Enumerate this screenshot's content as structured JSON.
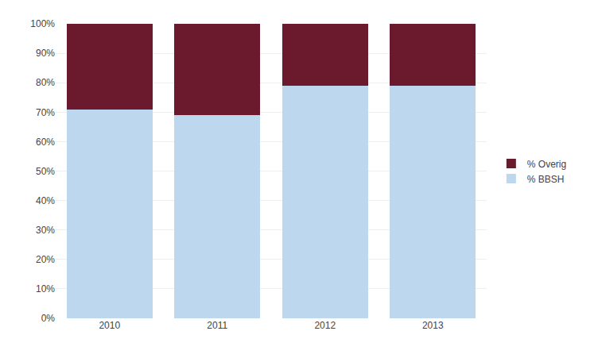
{
  "chart_data": {
    "type": "bar",
    "stacked": true,
    "categories": [
      "2010",
      "2011",
      "2012",
      "2013"
    ],
    "series": [
      {
        "name": "% BBSH",
        "color": "#bdd7ee",
        "values": [
          0.71,
          0.69,
          0.79,
          0.79
        ]
      },
      {
        "name": "% Overig",
        "color": "#6b1a2e",
        "values": [
          0.29,
          0.31,
          0.21,
          0.21
        ]
      }
    ],
    "ylim": [
      0,
      1.0
    ],
    "yticks": [
      {
        "value": 0.0,
        "label": "0%"
      },
      {
        "value": 0.1,
        "label": "10%"
      },
      {
        "value": 0.2,
        "label": "20%"
      },
      {
        "value": 0.3,
        "label": "30%"
      },
      {
        "value": 0.4,
        "label": "40%"
      },
      {
        "value": 0.5,
        "label": "50%"
      },
      {
        "value": 0.6,
        "label": "60%"
      },
      {
        "value": 0.7,
        "label": "70%"
      },
      {
        "value": 0.8,
        "label": "80%"
      },
      {
        "value": 0.9,
        "label": "90%"
      },
      {
        "value": 1.0,
        "label": "100%"
      }
    ],
    "grid": true,
    "legend": "right"
  }
}
